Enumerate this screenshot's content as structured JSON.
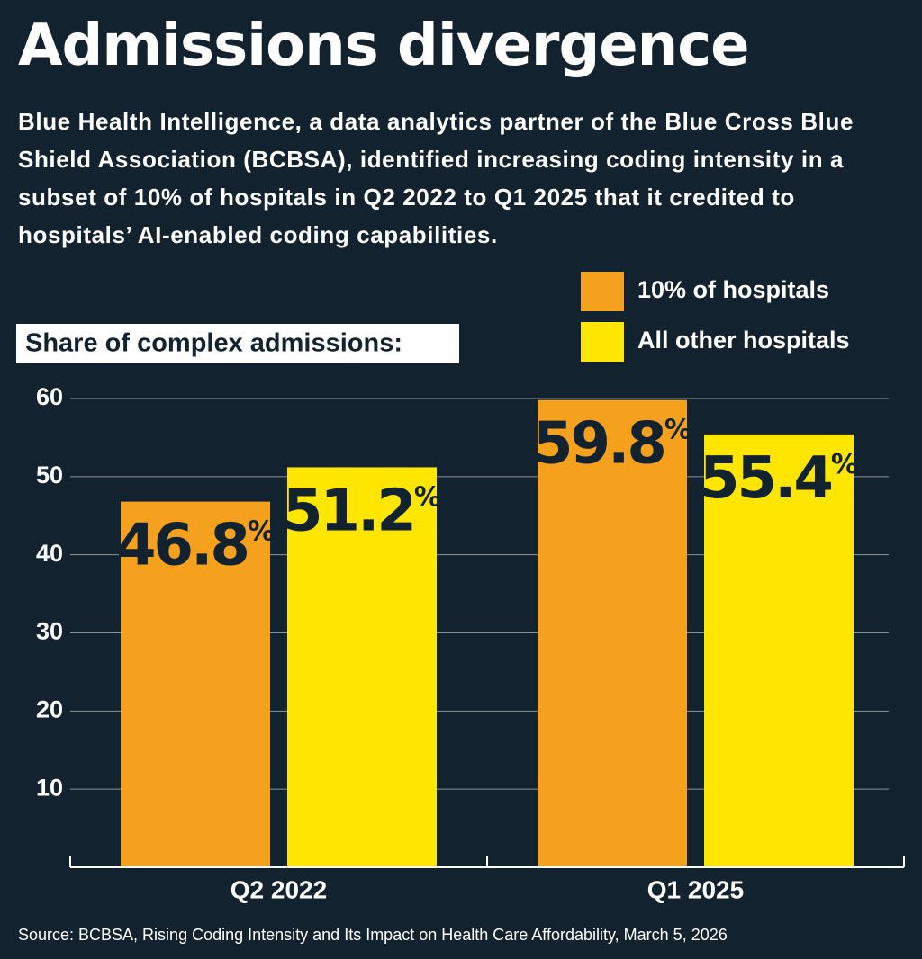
{
  "chart_data": {
    "type": "bar",
    "title": "Admissions divergence",
    "subtitle": "Blue Health Intelligence, a data analytics partner of the Blue Cross Blue Shield Association (BCBSA), identified increasing coding intensity in a subset of 10% of hospitals in Q2 2022 to Q1 2025 that it credited to hospitals’ AI-enabled coding capabilities.",
    "y_label": "Share of complex admissions:",
    "categories": [
      "Q2 2022",
      "Q1 2025"
    ],
    "series": [
      {
        "name": "10% of hospitals",
        "color": "#f5a11e",
        "values": [
          46.8,
          59.8
        ],
        "value_labels": [
          "46.8%",
          "59.8%"
        ]
      },
      {
        "name": "All other hospitals",
        "color": "#ffe600",
        "values": [
          51.2,
          55.4
        ],
        "value_labels": [
          "51.2%",
          "55.4%"
        ]
      }
    ],
    "ylim": [
      0,
      60
    ],
    "yticks": [
      10,
      20,
      30,
      40,
      50,
      60
    ],
    "grid": true,
    "source": "Source: BCBSA, Rising Coding Intensity and Its Impact on Health Care Affordability,  March 5, 2026"
  }
}
